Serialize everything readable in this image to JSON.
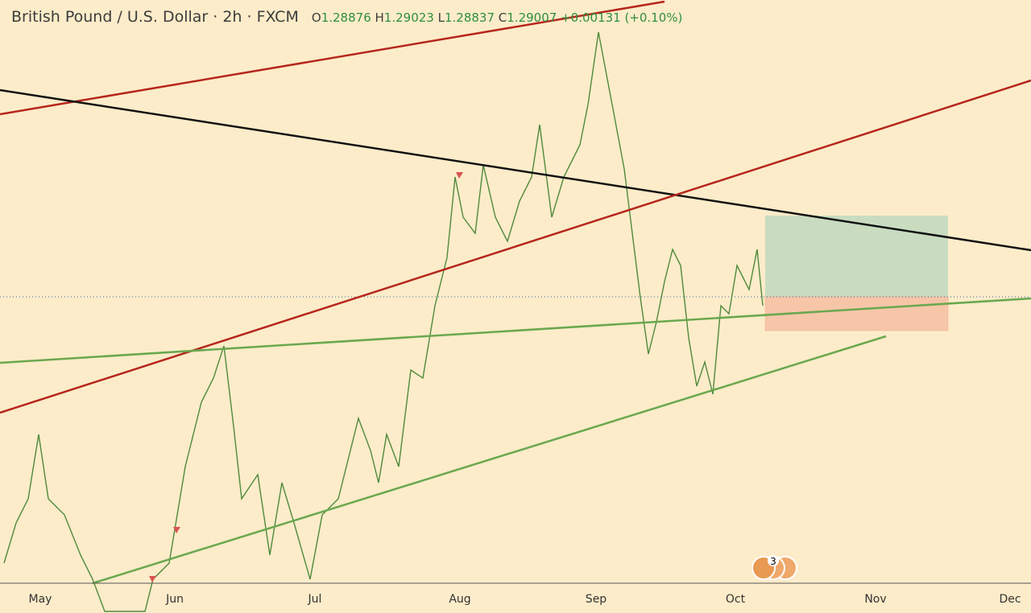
{
  "header": {
    "symbol": "British Pound / U.S. Dollar",
    "interval": "2h",
    "source": "FXCM",
    "open": "1.28876",
    "high": "1.29023",
    "low": "1.28837",
    "close": "1.29007",
    "change": "+0.00131 (+0.10%)"
  },
  "x_axis": {
    "months": [
      "May",
      "Jun",
      "Jul",
      "Aug",
      "Sep",
      "Oct",
      "Nov",
      "Dec"
    ]
  },
  "events": {
    "badge": "3"
  }
}
